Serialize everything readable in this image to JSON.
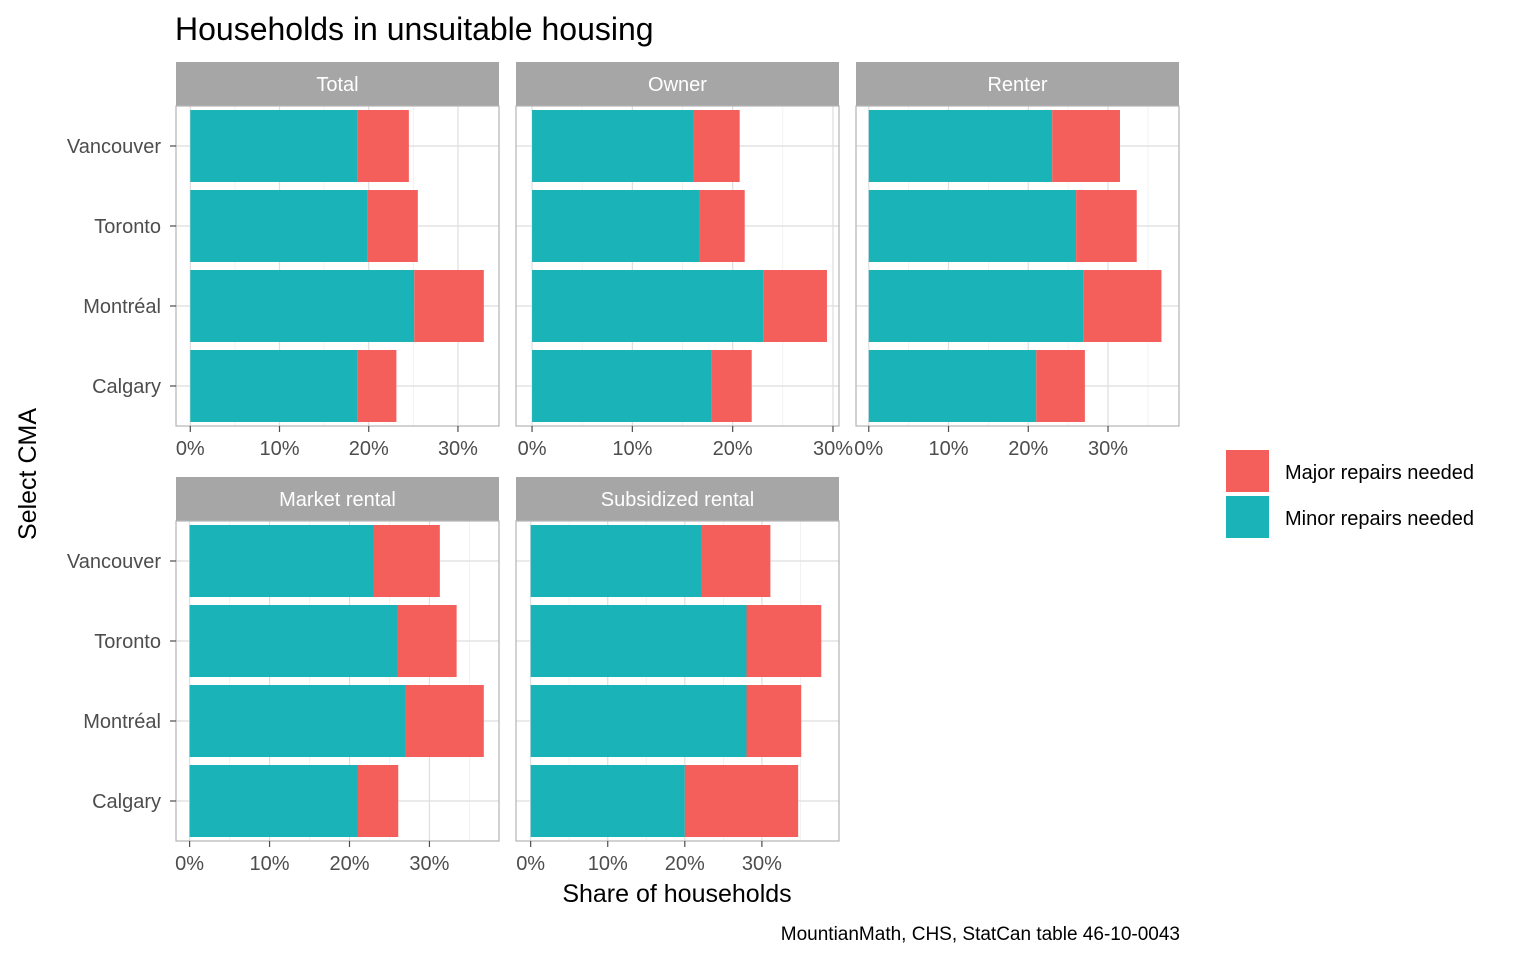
{
  "chart_data": {
    "type": "bar",
    "orientation": "horizontal",
    "stacked": true,
    "title": "Households in unsuitable housing",
    "xlabel": "Share of households",
    "ylabel": "Select CMA",
    "caption": "MountianMath, CHS, StatCan table 46-10-0043",
    "categories": [
      "Vancouver",
      "Toronto",
      "Montréal",
      "Calgary"
    ],
    "x_ticks": [
      "0%",
      "10%",
      "20%",
      "30%"
    ],
    "colors": {
      "Minor repairs needed": "#19b3b8",
      "Major repairs needed": "#f45f5b"
    },
    "legend": {
      "position": "right",
      "entries": [
        "Major repairs needed",
        "Minor repairs needed"
      ]
    },
    "grid": true,
    "facets": [
      {
        "label": "Total",
        "xlim": [
          -0.016,
          0.346
        ],
        "series": [
          {
            "name": "Minor repairs needed",
            "values": [
              0.187,
              0.199,
              0.251,
              0.187
            ]
          },
          {
            "name": "Major repairs needed",
            "values": [
              0.058,
              0.056,
              0.078,
              0.044
            ]
          }
        ]
      },
      {
        "label": "Owner",
        "xlim": [
          -0.016,
          0.306
        ],
        "series": [
          {
            "name": "Minor repairs needed",
            "values": [
              0.161,
              0.167,
              0.231,
              0.179
            ]
          },
          {
            "name": "Major repairs needed",
            "values": [
              0.046,
              0.045,
              0.063,
              0.04
            ]
          }
        ]
      },
      {
        "label": "Renter",
        "xlim": [
          -0.016,
          0.389
        ],
        "series": [
          {
            "name": "Minor repairs needed",
            "values": [
              0.23,
              0.26,
              0.269,
              0.21
            ]
          },
          {
            "name": "Major repairs needed",
            "values": [
              0.085,
              0.076,
              0.098,
              0.061
            ]
          }
        ]
      },
      {
        "label": "Market rental",
        "xlim": [
          -0.017,
          0.387
        ],
        "series": [
          {
            "name": "Minor repairs needed",
            "values": [
              0.23,
              0.26,
              0.27,
              0.21
            ]
          },
          {
            "name": "Major repairs needed",
            "values": [
              0.083,
              0.074,
              0.098,
              0.051
            ]
          }
        ]
      },
      {
        "label": "Subsidized rental",
        "xlim": [
          -0.019,
          0.4
        ],
        "series": [
          {
            "name": "Minor repairs needed",
            "values": [
              0.221,
              0.28,
              0.28,
              0.2
            ]
          },
          {
            "name": "Major repairs needed",
            "values": [
              0.09,
              0.097,
              0.071,
              0.147
            ]
          }
        ]
      }
    ]
  }
}
